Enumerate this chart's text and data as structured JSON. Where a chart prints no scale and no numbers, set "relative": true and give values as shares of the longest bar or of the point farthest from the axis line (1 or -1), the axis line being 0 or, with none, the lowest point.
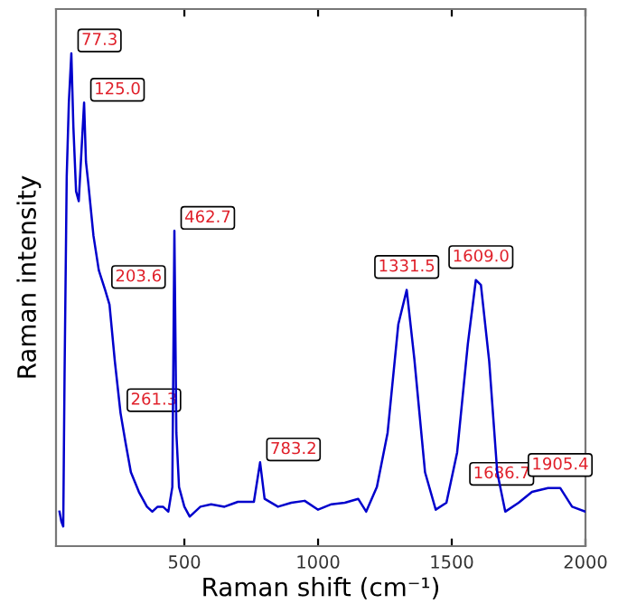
{
  "chart_data": {
    "type": "line",
    "relative": true,
    "xlabel": "Raman shift (cm⁻¹)",
    "ylabel": "Raman intensity",
    "xlim": [
      20,
      2000
    ],
    "xticks": [
      500,
      1000,
      1500,
      2000
    ],
    "grid": false,
    "legend": false,
    "marker": "none",
    "line_style": "solid",
    "series": [
      {
        "color": "#0000cc",
        "x": [
          33,
          40,
          47,
          52,
          60,
          68,
          77.3,
          85,
          95,
          105,
          115,
          125,
          132,
          140,
          160,
          180,
          203.6,
          220,
          240,
          261.3,
          280,
          300,
          330,
          360,
          380,
          400,
          420,
          440,
          455,
          462.7,
          470,
          480,
          500,
          520,
          560,
          600,
          650,
          700,
          760,
          783.2,
          800,
          850,
          900,
          950,
          1000,
          1050,
          1100,
          1150,
          1180,
          1220,
          1260,
          1300,
          1331.5,
          1360,
          1400,
          1440,
          1480,
          1520,
          1560,
          1590,
          1609,
          1640,
          1670,
          1700,
          1750,
          1800,
          1860,
          1905.4,
          1950,
          2000
        ],
        "values": [
          0.07,
          0.05,
          0.04,
          0.35,
          0.75,
          0.9,
          1.0,
          0.85,
          0.72,
          0.7,
          0.8,
          0.9,
          0.78,
          0.74,
          0.63,
          0.56,
          0.52,
          0.49,
          0.375,
          0.27,
          0.21,
          0.15,
          0.11,
          0.08,
          0.07,
          0.08,
          0.08,
          0.07,
          0.12,
          0.64,
          0.23,
          0.12,
          0.08,
          0.06,
          0.08,
          0.085,
          0.08,
          0.09,
          0.09,
          0.17,
          0.096,
          0.08,
          0.088,
          0.092,
          0.074,
          0.085,
          0.088,
          0.096,
          0.07,
          0.12,
          0.23,
          0.45,
          0.52,
          0.38,
          0.15,
          0.074,
          0.088,
          0.19,
          0.41,
          0.54,
          0.53,
          0.375,
          0.15,
          0.07,
          0.088,
          0.11,
          0.118,
          0.118,
          0.08,
          0.07
        ]
      }
    ],
    "annotations": [
      {
        "text": "77.3",
        "x": 77.3,
        "y": 1.0
      },
      {
        "text": "125.0",
        "x": 125,
        "y": 0.9
      },
      {
        "text": "203.6",
        "x": 203.6,
        "y": 0.52
      },
      {
        "text": "261.3",
        "x": 261.3,
        "y": 0.27
      },
      {
        "text": "462.7",
        "x": 462.7,
        "y": 0.64
      },
      {
        "text": "783.2",
        "x": 783.2,
        "y": 0.17
      },
      {
        "text": "1331.5",
        "x": 1331.5,
        "y": 0.52
      },
      {
        "text": "1686.7",
        "x": 1686.7,
        "y": 0.1
      },
      {
        "text": "1609.0",
        "x": 1609,
        "y": 0.54
      },
      {
        "text": "1905.4",
        "x": 1905.4,
        "y": 0.118
      }
    ]
  }
}
